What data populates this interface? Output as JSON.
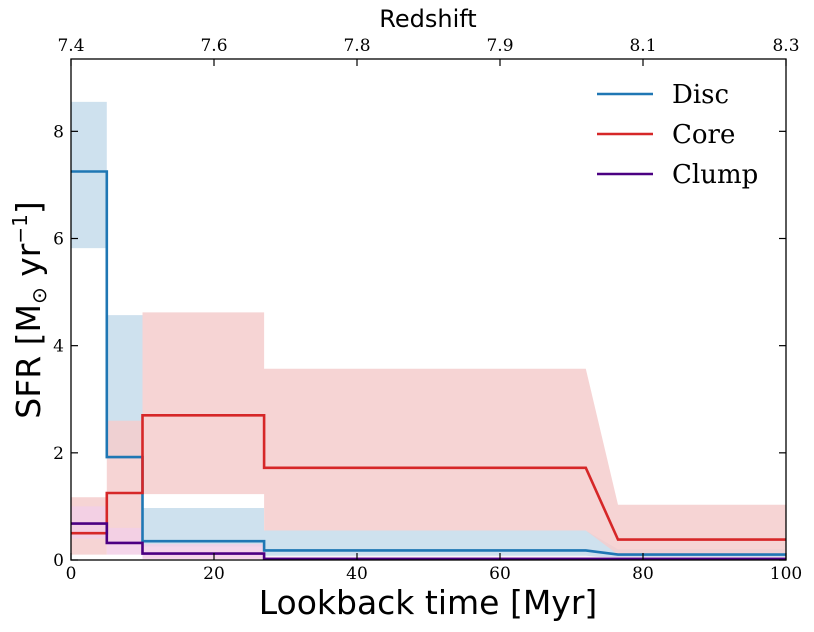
{
  "chart_data": {
    "type": "line",
    "style": "step",
    "xlabel": "Lookback time [Myr]",
    "ylabel": "SFR [M",
    "ylabel_sub": "⊙",
    "ylabel_unit": " yr",
    "ylabel_exp": "−1",
    "ylabel_close": "]",
    "top_axis_label": "Redshift",
    "xlim": [
      0,
      100
    ],
    "ylim": [
      0,
      9.35
    ],
    "x_ticks": [
      0,
      20,
      40,
      60,
      80,
      100
    ],
    "y_ticks": [
      0,
      2,
      4,
      6,
      8
    ],
    "top_ticks": [
      {
        "x": 0,
        "label": "7.4"
      },
      {
        "x": 20,
        "label": "7.6"
      },
      {
        "x": 40,
        "label": "7.8"
      },
      {
        "x": 60,
        "label": "7.9"
      },
      {
        "x": 80,
        "label": "8.1"
      },
      {
        "x": 100,
        "label": "8.3"
      }
    ],
    "legend_position": "top-right",
    "series": [
      {
        "name": "Disc",
        "color": "#1f77b4",
        "band_color": "#c6dceb",
        "points": [
          [
            0,
            7.25
          ],
          [
            5,
            7.25
          ],
          [
            5,
            1.92
          ],
          [
            10,
            1.92
          ],
          [
            10,
            0.35
          ],
          [
            27,
            0.35
          ],
          [
            27,
            0.18
          ],
          [
            72,
            0.18
          ],
          [
            76.5,
            0.1
          ],
          [
            100,
            0.1
          ]
        ],
        "upper": [
          [
            0,
            8.55
          ],
          [
            5,
            8.55
          ],
          [
            5,
            4.57
          ],
          [
            10,
            4.57
          ],
          [
            10,
            0.97
          ],
          [
            27,
            0.97
          ],
          [
            27,
            0.55
          ],
          [
            72,
            0.55
          ],
          [
            76.5,
            0.2
          ],
          [
            100,
            0.2
          ]
        ],
        "lower": [
          [
            0,
            5.82
          ],
          [
            5,
            5.82
          ],
          [
            5,
            1.9
          ],
          [
            10,
            1.9
          ],
          [
            10,
            0.25
          ],
          [
            27,
            0.25
          ],
          [
            27,
            0.08
          ],
          [
            72,
            0.08
          ],
          [
            76.5,
            0.03
          ],
          [
            100,
            0.03
          ]
        ]
      },
      {
        "name": "Core",
        "color": "#d62728",
        "band_color": "#f4cccc",
        "points": [
          [
            0,
            0.5
          ],
          [
            5,
            0.5
          ],
          [
            5,
            1.25
          ],
          [
            10,
            1.25
          ],
          [
            10,
            2.7
          ],
          [
            27,
            2.7
          ],
          [
            27,
            1.72
          ],
          [
            72,
            1.72
          ],
          [
            76.5,
            0.38
          ],
          [
            100,
            0.38
          ]
        ],
        "upper": [
          [
            0,
            1.17
          ],
          [
            5,
            1.17
          ],
          [
            5,
            2.6
          ],
          [
            10,
            2.6
          ],
          [
            10,
            4.62
          ],
          [
            27,
            4.62
          ],
          [
            27,
            3.57
          ],
          [
            72,
            3.57
          ],
          [
            76.5,
            1.03
          ],
          [
            100,
            1.03
          ]
        ],
        "lower": [
          [
            0,
            0.1
          ],
          [
            5,
            0.1
          ],
          [
            5,
            0.35
          ],
          [
            10,
            0.35
          ],
          [
            10,
            1.23
          ],
          [
            27,
            1.23
          ],
          [
            27,
            0.55
          ],
          [
            72,
            0.55
          ],
          [
            76.5,
            0.1
          ],
          [
            100,
            0.1
          ]
        ]
      },
      {
        "name": "Clump",
        "color": "#4b0082",
        "band_color": "#f2cfe6",
        "points": [
          [
            0,
            0.68
          ],
          [
            5,
            0.68
          ],
          [
            5,
            0.32
          ],
          [
            10,
            0.32
          ],
          [
            10,
            0.12
          ],
          [
            27,
            0.12
          ],
          [
            27,
            0.02
          ],
          [
            100,
            0.02
          ]
        ],
        "upper": [
          [
            0,
            1.0
          ],
          [
            5,
            1.0
          ],
          [
            5,
            0.6
          ],
          [
            10,
            0.6
          ],
          [
            10,
            0.3
          ],
          [
            27,
            0.3
          ],
          [
            27,
            0.06
          ],
          [
            100,
            0.06
          ]
        ],
        "lower": [
          [
            0,
            0.4
          ],
          [
            5,
            0.4
          ],
          [
            5,
            0.1
          ],
          [
            10,
            0.1
          ],
          [
            10,
            0.02
          ],
          [
            27,
            0.02
          ],
          [
            27,
            0.0
          ],
          [
            100,
            0.0
          ]
        ]
      }
    ]
  }
}
